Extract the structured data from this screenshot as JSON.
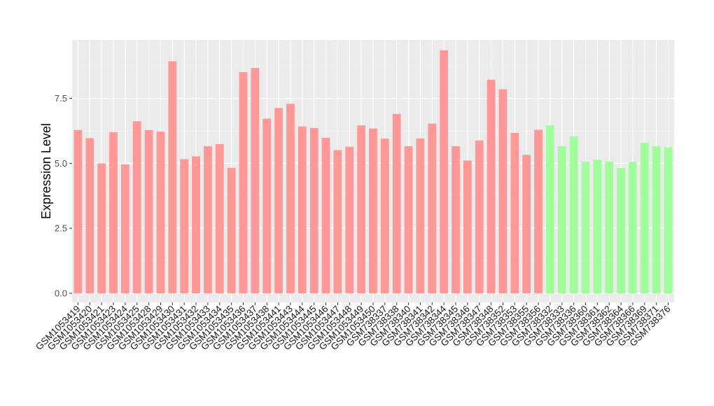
{
  "chart_data": {
    "type": "bar",
    "title": "",
    "xlabel": "",
    "ylabel": "Expression Level",
    "ylim": [
      -0.35,
      9.75
    ],
    "yticks": [
      0.0,
      2.5,
      5.0,
      7.5
    ],
    "ytick_labels": [
      "0.0",
      "2.5",
      "5.0",
      "7.5"
    ],
    "grid": true,
    "legend": "none",
    "categories": [
      "GSM1053419",
      "GSM1053420",
      "GSM1053421",
      "GSM1053423",
      "GSM1053424",
      "GSM1053425",
      "GSM1053428",
      "GSM1053429",
      "GSM1053430",
      "GSM1053431",
      "GSM1053432",
      "GSM1053433",
      "GSM1053434",
      "GSM1053435",
      "GSM1053436",
      "GSM1053437",
      "GSM1053438",
      "GSM1053441",
      "GSM1053443",
      "GSM1053444",
      "GSM1053445",
      "GSM1053446",
      "GSM1053447",
      "GSM1053448",
      "GSM1053449",
      "GSM1053450",
      "GSM738337",
      "GSM738338",
      "GSM738340",
      "GSM738341",
      "GSM738342",
      "GSM738344",
      "GSM738345",
      "GSM738346",
      "GSM738347",
      "GSM738348",
      "GSM738352",
      "GSM738353",
      "GSM738355",
      "GSM738356",
      "GSM738332",
      "GSM738333",
      "GSM738336",
      "GSM738360",
      "GSM738361",
      "GSM738362",
      "GSM738364",
      "GSM738366",
      "GSM738369",
      "GSM738371",
      "GSM738376"
    ],
    "values": [
      6.28,
      5.97,
      5.0,
      6.2,
      4.96,
      6.62,
      6.28,
      6.22,
      8.93,
      5.16,
      5.27,
      5.66,
      5.74,
      4.83,
      8.51,
      8.67,
      6.72,
      7.13,
      7.29,
      6.42,
      6.36,
      5.98,
      5.51,
      5.64,
      6.46,
      6.34,
      5.95,
      6.9,
      5.66,
      5.96,
      6.53,
      9.35,
      5.66,
      5.11,
      5.88,
      8.22,
      7.85,
      6.17,
      5.33,
      6.29,
      6.46,
      5.66,
      6.04,
      5.06,
      5.14,
      5.07,
      4.82,
      5.06,
      5.79,
      5.66,
      5.62
    ],
    "groups": [
      "a",
      "a",
      "a",
      "a",
      "a",
      "a",
      "a",
      "a",
      "a",
      "a",
      "a",
      "a",
      "a",
      "a",
      "a",
      "a",
      "a",
      "a",
      "a",
      "a",
      "a",
      "a",
      "a",
      "a",
      "a",
      "a",
      "a",
      "a",
      "a",
      "a",
      "a",
      "a",
      "a",
      "a",
      "a",
      "a",
      "a",
      "a",
      "a",
      "a",
      "b",
      "b",
      "b",
      "b",
      "b",
      "b",
      "b",
      "b",
      "b",
      "b",
      "b"
    ],
    "colors": {
      "a": "#ff9896",
      "b": "#a1ff9b",
      "panel": "#ebebeb",
      "grid_major": "#ffffff",
      "grid_minor": "#f5f5f5",
      "tick": "#333333"
    }
  }
}
